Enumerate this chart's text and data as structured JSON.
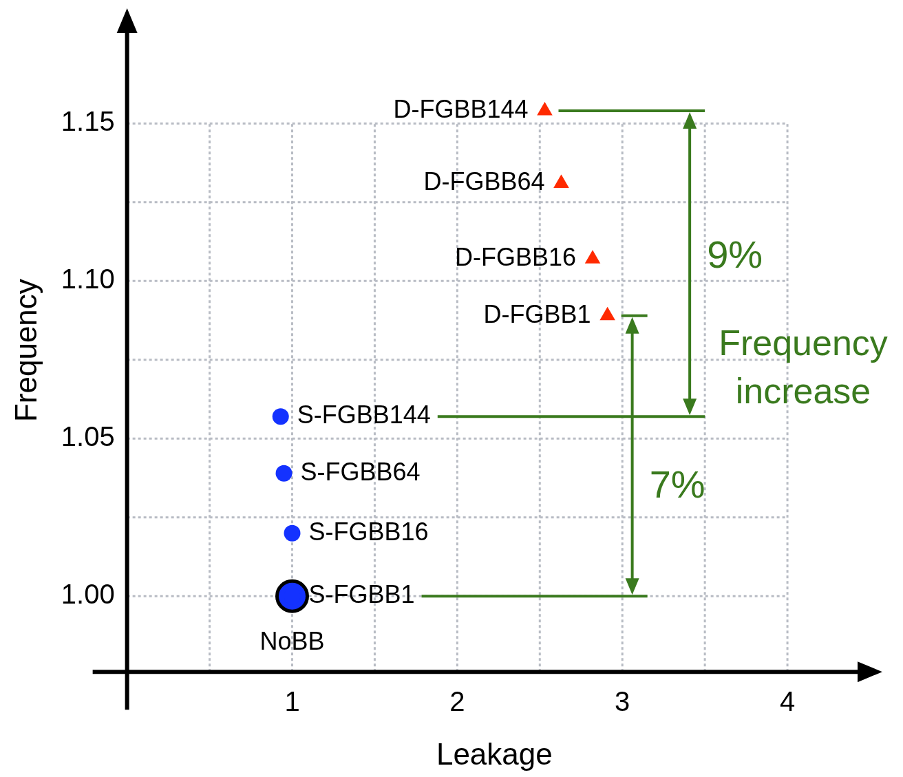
{
  "chart_data": {
    "type": "scatter",
    "xlabel": "Leakage",
    "ylabel": "Frequency",
    "xlim": [
      0,
      4.45
    ],
    "ylim": [
      0.976,
      1.18
    ],
    "xticks": [
      {
        "value": 0.5,
        "label": null
      },
      1,
      {
        "value": 1.5,
        "label": null
      },
      2,
      {
        "value": 2.5,
        "label": null
      },
      3,
      {
        "value": 3.5,
        "label": null
      },
      4
    ],
    "yticks": [
      {
        "value": 1.0,
        "label": "1.00"
      },
      {
        "value": 1.025,
        "label": null
      },
      {
        "value": 1.05,
        "label": "1.05"
      },
      {
        "value": 1.075,
        "label": null
      },
      {
        "value": 1.1,
        "label": "1.10"
      },
      {
        "value": 1.125,
        "label": null
      },
      {
        "value": 1.15,
        "label": "1.15"
      }
    ],
    "grid": true,
    "legend": false,
    "series": [
      {
        "name": "D-FGBB144",
        "color": "#ff2a00",
        "marker": "triangle",
        "x": [
          2.53
        ],
        "values": [
          1.154
        ]
      },
      {
        "name": "D-FGBB64",
        "color": "#ff2a00",
        "marker": "triangle",
        "x": [
          2.63
        ],
        "values": [
          1.131
        ]
      },
      {
        "name": "D-FGBB16",
        "color": "#ff2a00",
        "marker": "triangle",
        "x": [
          2.82
        ],
        "values": [
          1.107
        ]
      },
      {
        "name": "D-FGBB1",
        "color": "#ff2a00",
        "marker": "triangle",
        "x": [
          2.91
        ],
        "values": [
          1.089
        ]
      },
      {
        "name": "S-FGBB144",
        "color": "#1432ff",
        "marker": "circle",
        "x": [
          0.93
        ],
        "values": [
          1.057
        ]
      },
      {
        "name": "S-FGBB64",
        "color": "#1432ff",
        "marker": "circle",
        "x": [
          0.95
        ],
        "values": [
          1.039
        ]
      },
      {
        "name": "S-FGBB16",
        "color": "#1432ff",
        "marker": "circle",
        "x": [
          1.0
        ],
        "values": [
          1.02
        ]
      },
      {
        "name": "S-FGBB1",
        "color": "#1432ff",
        "marker": "circle",
        "x": [
          1.0
        ],
        "values": [
          1.0
        ]
      }
    ],
    "annotations": [
      "9%",
      "7%",
      {
        "text": "NoBB",
        "x": 1.0,
        "y": 1.0
      },
      "Frequency increase"
    ]
  }
}
